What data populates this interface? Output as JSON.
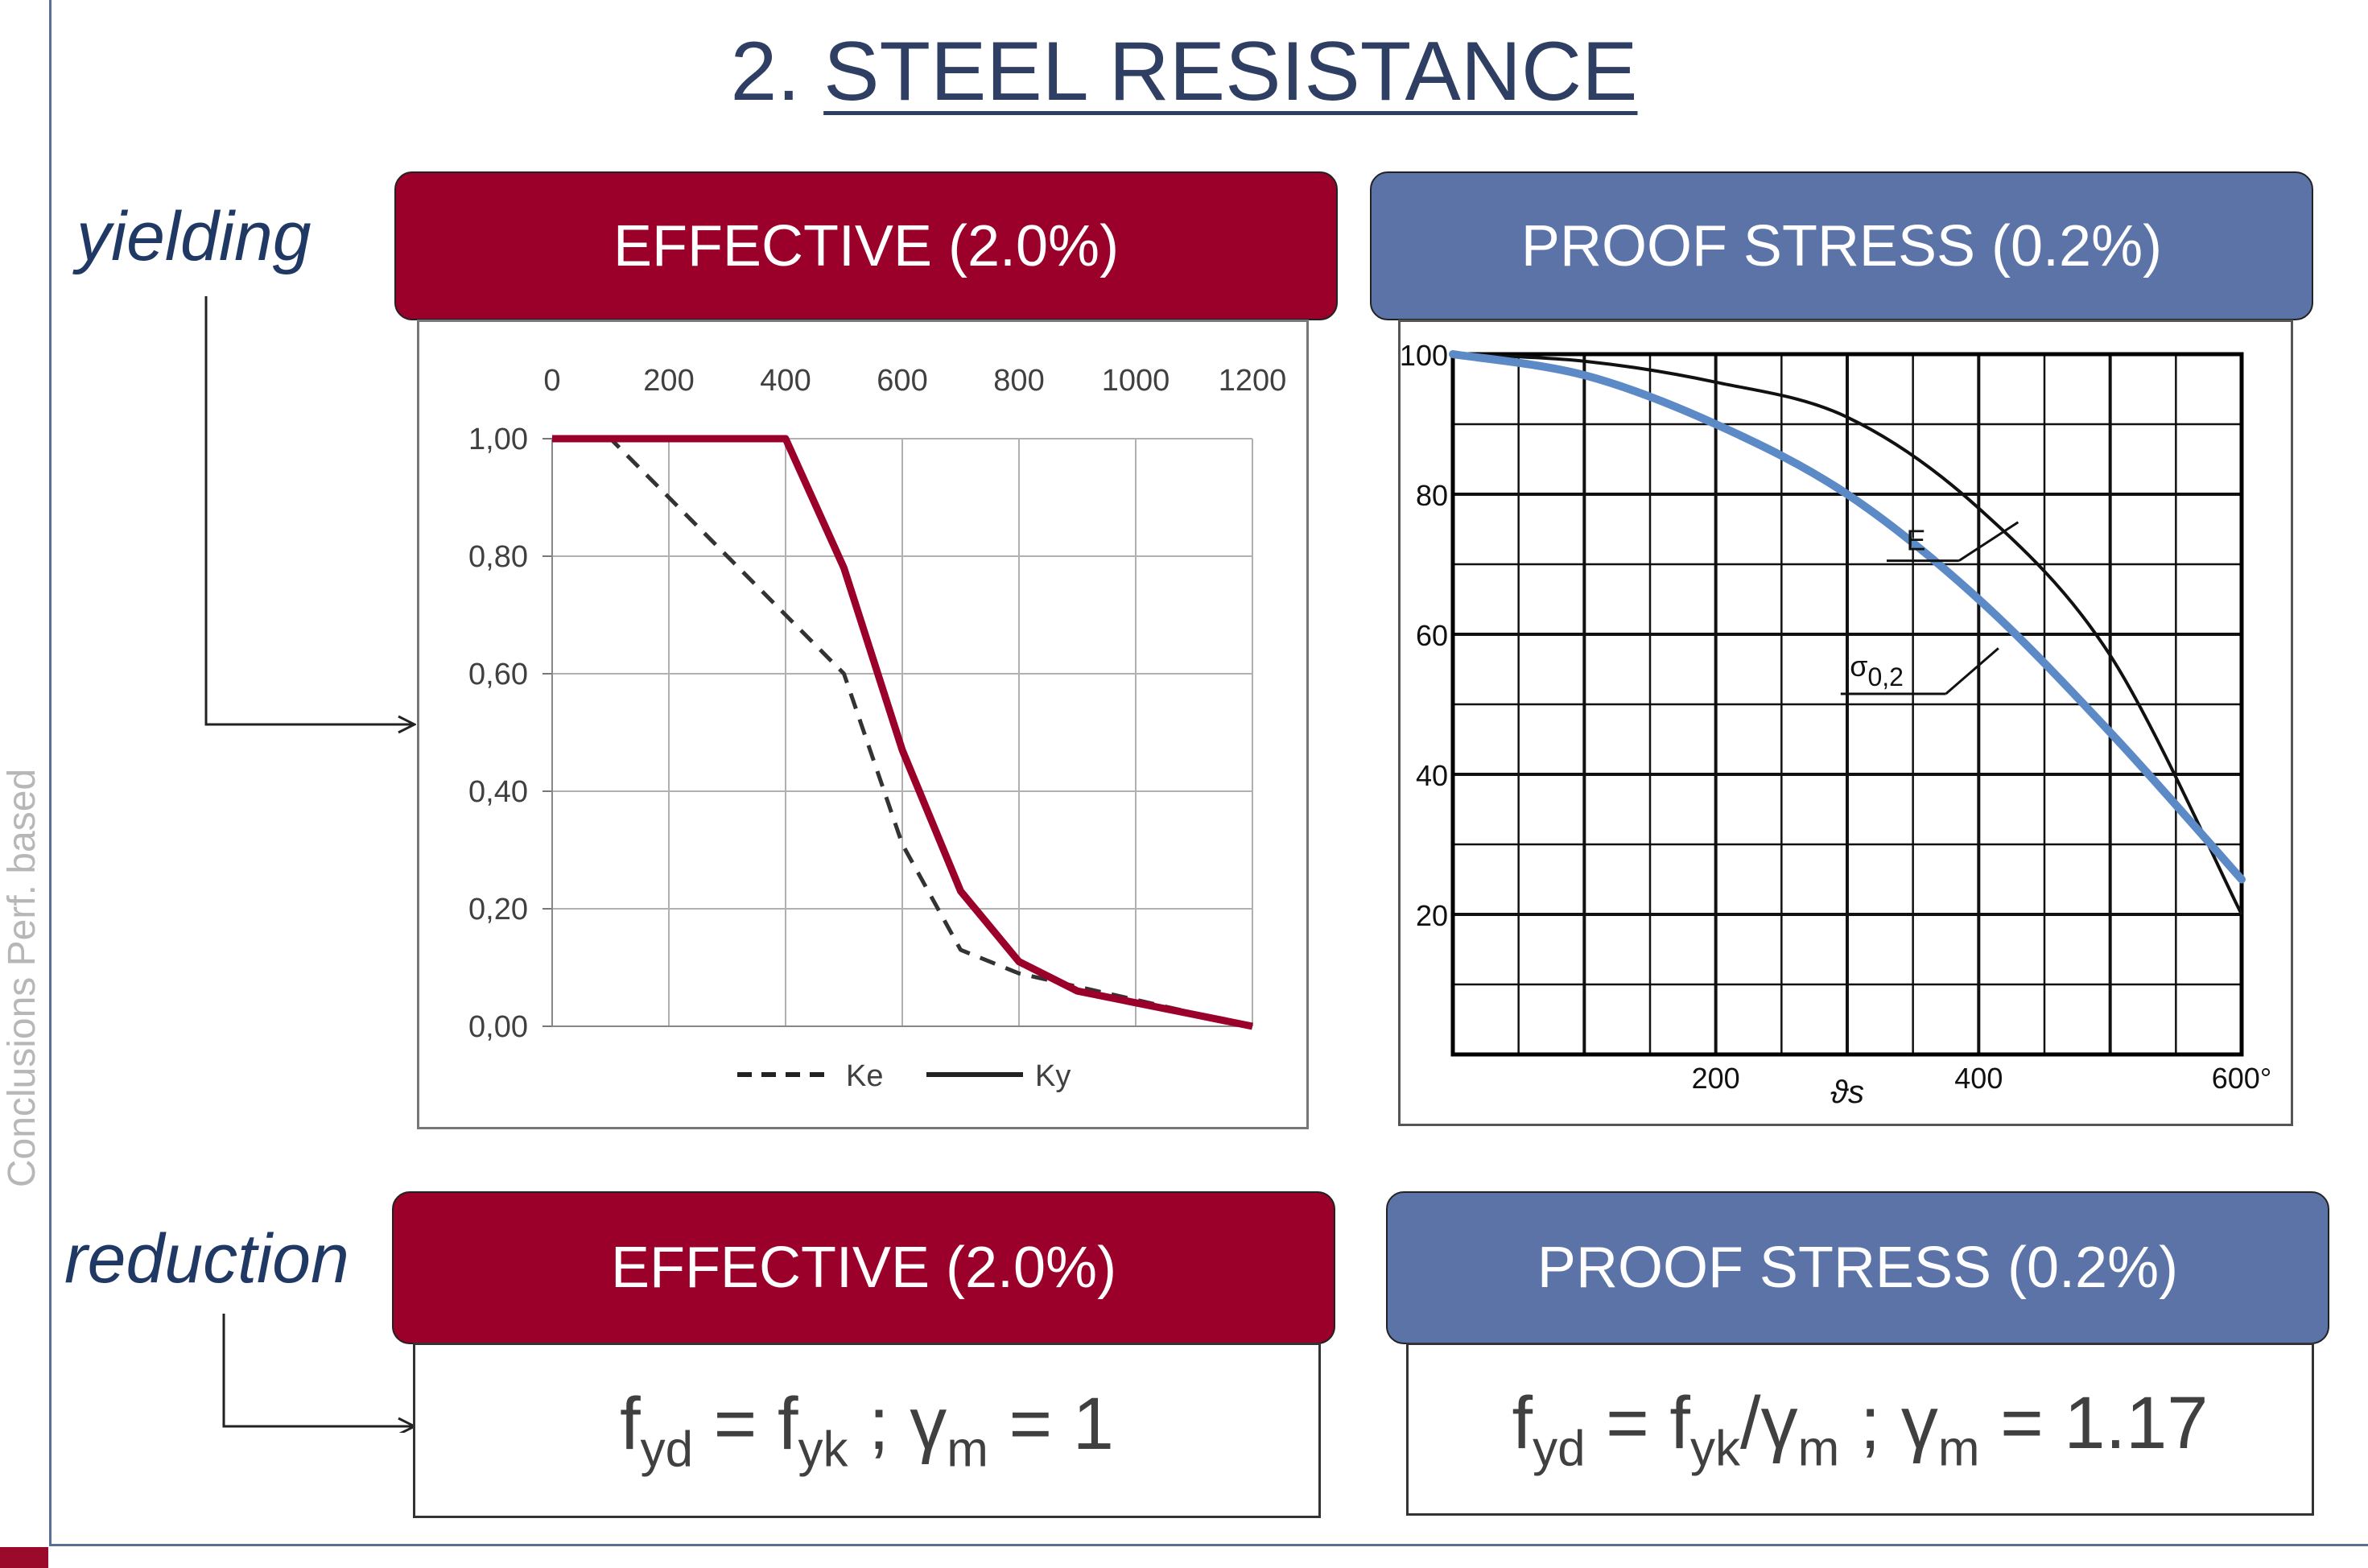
{
  "title": {
    "number": "2.",
    "text": "STEEL RESISTANCE"
  },
  "side_nav": {
    "text": "Conclusions      Perf. based"
  },
  "labels": {
    "yielding": "yielding",
    "reduction": "reduction"
  },
  "headers": {
    "effective_top": "EFFECTIVE (2.0%)",
    "proof_top": "PROOF STRESS (0.2%)",
    "effective_bottom": "EFFECTIVE (2.0%)",
    "proof_bottom": "PROOF STRESS (0.2%)"
  },
  "formulas": {
    "effective": {
      "f1": "f",
      "s1": "yd",
      "eq1": " = f",
      "s2": "yk",
      "mid": " ; ",
      "g": "γ",
      "s3": "m",
      "tail": " = 1"
    },
    "proof": {
      "f1": "f",
      "s1": "yd",
      "eq1": " = f",
      "s2": "yk",
      "slash": "/",
      "g1": "γ",
      "s3": "m",
      "mid": " ; ",
      "g2": "γ",
      "s4": "m",
      "tail": " = 1.17"
    }
  },
  "colors": {
    "accent_red": "#9a0029",
    "accent_blue": "#5b73a6",
    "title": "#2f3f63"
  },
  "chart_data": [
    {
      "type": "line",
      "title": "",
      "x_ticks": [
        "0",
        "200",
        "400",
        "600",
        "800",
        "1000",
        "1200"
      ],
      "y_ticks": [
        "1,00",
        "0,80",
        "0,60",
        "0,40",
        "0,20",
        "0,00"
      ],
      "xlim": [
        0,
        1200
      ],
      "ylim": [
        0,
        1
      ],
      "legend_position": "bottom",
      "series": [
        {
          "name": "Ke",
          "style": "dashed",
          "color": "#333333",
          "x": [
            0,
            100,
            200,
            300,
            400,
            500,
            600,
            700,
            800,
            900,
            1000,
            1100,
            1200
          ],
          "y": [
            1.0,
            1.0,
            0.9,
            0.8,
            0.7,
            0.6,
            0.31,
            0.13,
            0.09,
            0.0675,
            0.045,
            0.0225,
            0.0
          ]
        },
        {
          "name": "Ky",
          "style": "solid",
          "color": "#9a0029",
          "x": [
            0,
            100,
            200,
            300,
            400,
            500,
            600,
            700,
            800,
            900,
            1000,
            1100,
            1200
          ],
          "y": [
            1.0,
            1.0,
            1.0,
            1.0,
            1.0,
            0.78,
            0.47,
            0.23,
            0.11,
            0.06,
            0.04,
            0.02,
            0.0
          ]
        }
      ]
    },
    {
      "type": "line",
      "title": "",
      "x_ticks": [
        "200",
        "400",
        "600°"
      ],
      "y_ticks": [
        "100",
        "80",
        "60",
        "40",
        "20"
      ],
      "xlabel": "ϑs",
      "xlim": [
        0,
        600
      ],
      "ylim": [
        0,
        100
      ],
      "series": [
        {
          "name": "E",
          "style": "solid",
          "color": "#111111",
          "x": [
            0,
            100,
            200,
            300,
            400,
            500,
            600
          ],
          "y": [
            100,
            99,
            96,
            91,
            78,
            57,
            20
          ]
        },
        {
          "name": "σ0,2",
          "style": "solid",
          "color": "#5b8ac6",
          "x": [
            0,
            100,
            200,
            300,
            400,
            500,
            600
          ],
          "y": [
            100,
            97,
            90,
            80,
            65,
            46,
            25
          ]
        }
      ]
    }
  ]
}
